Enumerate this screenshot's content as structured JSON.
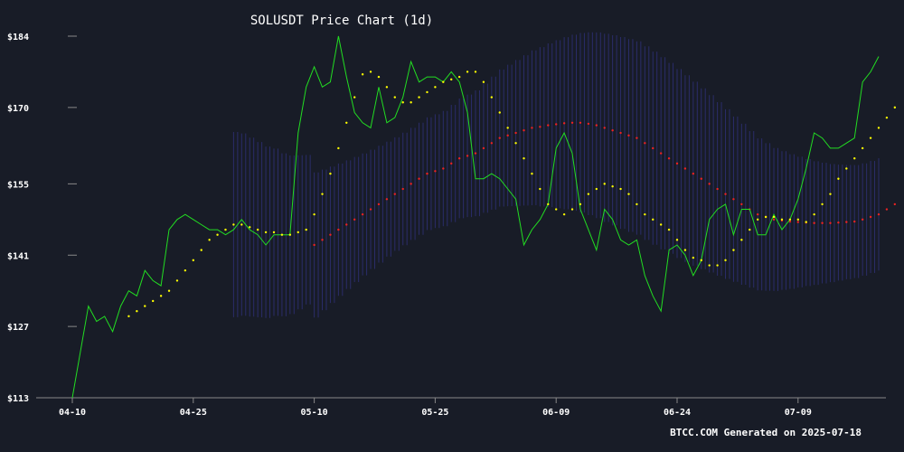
{
  "chart_data": {
    "type": "line",
    "title": "SOLUSDT Price Chart (1d)",
    "footer": "BTCC.COM Generated on 2025-07-18",
    "xlabel": "",
    "ylabel": "",
    "x_start": "04-10",
    "x_end": "07-18",
    "x_ticks": [
      "04-10",
      "04-25",
      "05-10",
      "05-25",
      "06-09",
      "06-24",
      "07-09"
    ],
    "y_ticks": [
      "$113",
      "$127",
      "$141",
      "$155",
      "$170",
      "$184"
    ],
    "ylim": [
      113,
      184
    ],
    "grid": false,
    "colors": {
      "background": "#181c27",
      "price": "#22dd22",
      "sma_short": "#ffff00",
      "sma_long": "#ee2222",
      "band": "#3a3aa0",
      "axis": "#888888",
      "text": "#ffffff"
    },
    "series": [
      {
        "key": "price",
        "style": "line",
        "values": [
          113,
          122,
          131,
          128,
          129,
          126,
          131,
          134,
          133,
          138,
          136,
          135,
          146,
          148,
          149,
          148,
          147,
          146,
          146,
          145,
          146,
          148,
          146,
          145,
          143,
          145,
          145,
          145,
          165,
          174,
          178,
          174,
          175,
          184,
          176,
          169,
          167,
          166,
          174,
          167,
          168,
          172,
          179,
          175,
          176,
          176,
          175,
          177,
          175,
          169,
          156,
          156,
          157,
          156,
          154,
          152,
          143,
          146,
          148,
          151,
          162,
          165,
          161,
          150,
          146,
          142,
          150,
          148,
          144,
          143,
          144,
          137,
          133,
          130,
          142,
          143,
          141,
          137,
          140,
          148,
          150,
          151,
          145,
          150,
          150,
          145,
          145,
          149,
          146,
          148,
          152,
          158,
          165,
          164,
          162,
          162,
          163,
          164,
          175,
          177,
          180
        ]
      },
      {
        "key": "sma_short",
        "style": "dots",
        "start_index": 7,
        "values": [
          129,
          130,
          131,
          132,
          133,
          134,
          136,
          138,
          140,
          142,
          144,
          145,
          146,
          147,
          147,
          146.5,
          146,
          145.5,
          145.5,
          145,
          145,
          145.5,
          146,
          149,
          153,
          157,
          162,
          167,
          172,
          176.5,
          177,
          176,
          174,
          172,
          171,
          171,
          172,
          173,
          174,
          175,
          175.5,
          176,
          177,
          177,
          175,
          172,
          169,
          166,
          163,
          160,
          157,
          154,
          151,
          150,
          149,
          150,
          151,
          153,
          154,
          155,
          154.5,
          154,
          153,
          151,
          149,
          148,
          147,
          146,
          144,
          142,
          140.5,
          140,
          139,
          139,
          140,
          142,
          144,
          146,
          148,
          148.5,
          148.5,
          148,
          148,
          148,
          147.5,
          149,
          151,
          153,
          156,
          158,
          160,
          162,
          164,
          166,
          168,
          170
        ]
      },
      {
        "key": "sma_long",
        "style": "dots",
        "start_index": 30,
        "values": [
          143,
          144,
          145,
          146,
          147,
          148,
          149,
          150,
          151,
          152,
          153,
          154,
          155,
          156,
          157,
          157.5,
          158,
          159,
          160,
          160.5,
          161,
          162,
          163,
          164,
          164.5,
          165,
          165.5,
          166,
          166.2,
          166.5,
          166.7,
          166.9,
          167,
          167,
          166.8,
          166.5,
          166,
          165.5,
          165,
          164.5,
          164,
          163,
          162,
          161,
          160,
          159,
          158,
          157,
          156,
          155,
          154,
          153,
          152,
          151,
          150,
          149,
          148.5,
          148,
          147.8,
          147.6,
          147.5,
          147.4,
          147.3,
          147.3,
          147.3,
          147.4,
          147.5,
          147.6,
          148,
          148.5,
          149,
          150,
          151
        ]
      }
    ]
  }
}
